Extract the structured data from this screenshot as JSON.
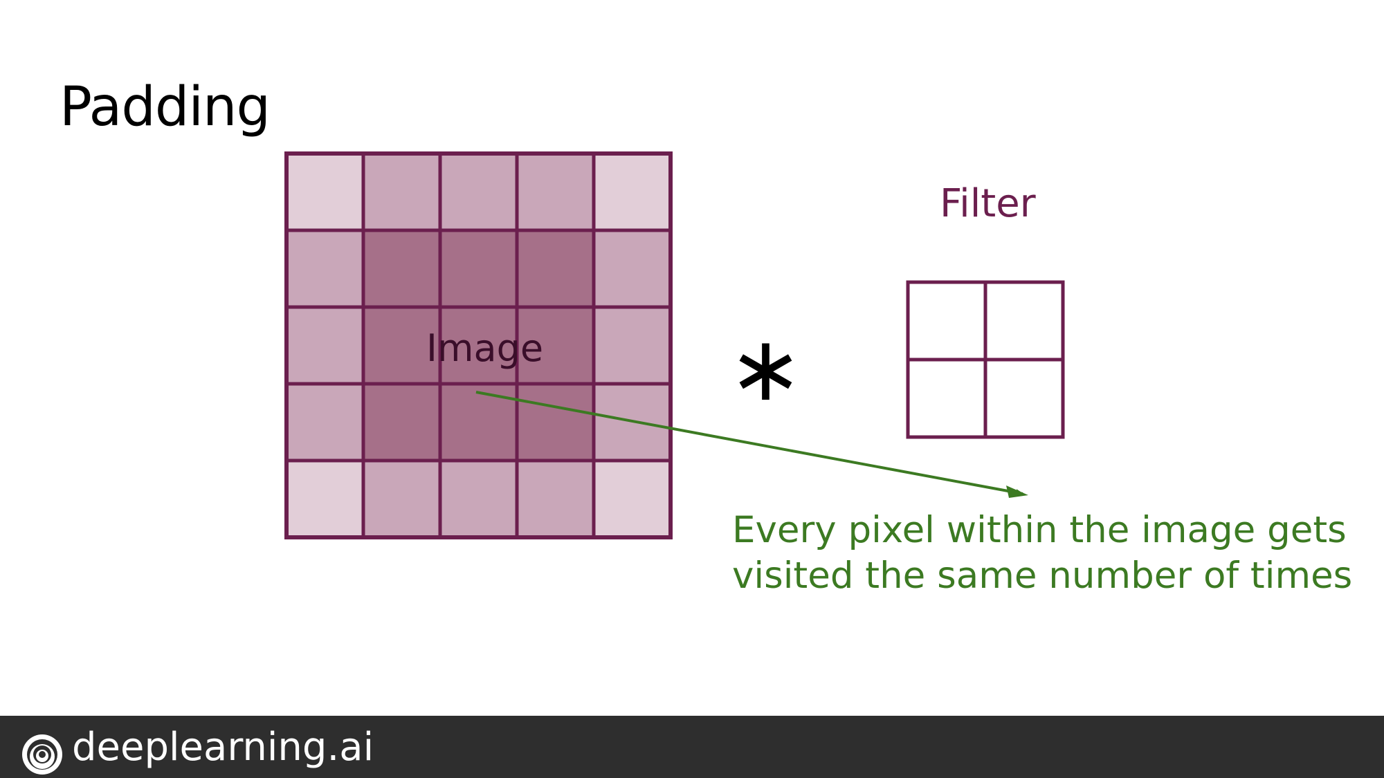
{
  "slide": {
    "title": "Padding",
    "brand": "deeplearning.ai"
  },
  "diagram": {
    "image_label": "Image",
    "filter_label": "Filter",
    "operator": "∗",
    "note_lines": [
      "Every pixel within the image gets",
      "visited the same number of times"
    ],
    "image_grid": {
      "rows": 5,
      "cols": 5,
      "visit_levels": [
        [
          1,
          2,
          2,
          2,
          1
        ],
        [
          2,
          4,
          4,
          4,
          2
        ],
        [
          2,
          4,
          4,
          4,
          2
        ],
        [
          2,
          4,
          4,
          4,
          2
        ],
        [
          1,
          2,
          2,
          2,
          1
        ]
      ]
    },
    "filter_grid": {
      "rows": 2,
      "cols": 2
    }
  },
  "colors": {
    "grid_border": "#6b1f4e",
    "level_1": "#e2ced8",
    "level_2": "#c9a7b9",
    "level_4": "#a67089",
    "label_purple": "#6b1f4e",
    "image_label": "#3a0e2a",
    "note_green": "#3c7a22",
    "footer_bg": "#2e2e2e"
  }
}
